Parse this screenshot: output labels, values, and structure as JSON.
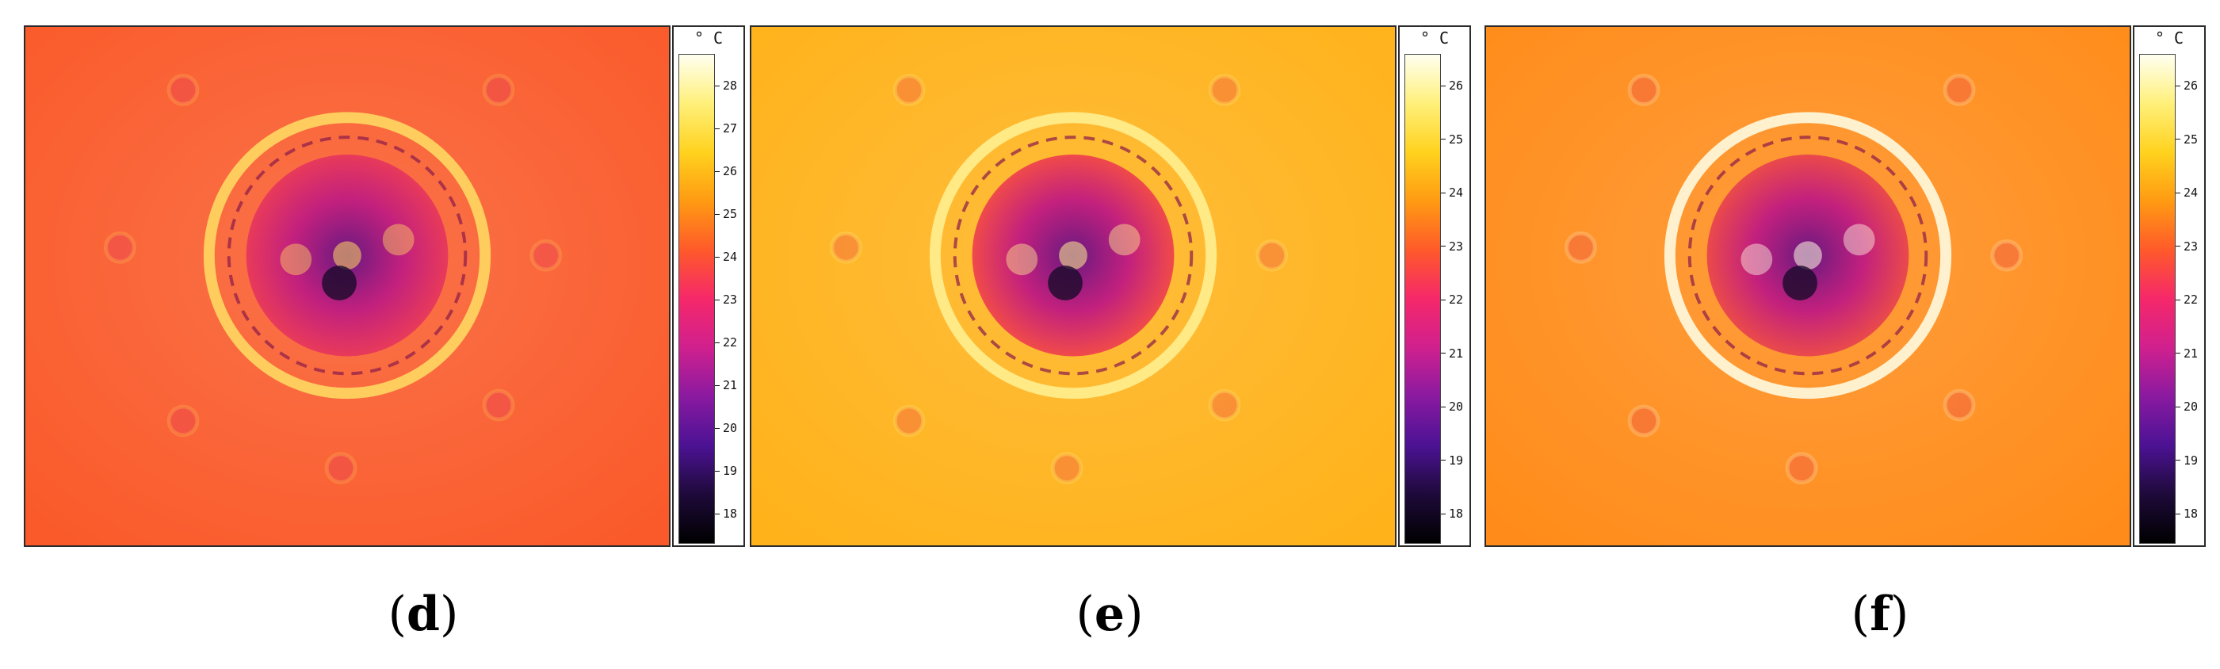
{
  "panels": [
    {
      "caption_letter": "d",
      "unit": "° C",
      "ticks": [
        "28",
        "27",
        "26",
        "25",
        "24",
        "23",
        "22",
        "21",
        "20",
        "19",
        "18"
      ],
      "palette": {
        "bg": "#fa5a2a",
        "ring": "#ffd860",
        "inner": "#e83a5a",
        "core": "#6a1a80"
      }
    },
    {
      "caption_letter": "e",
      "unit": "° C",
      "ticks": [
        "26",
        "25",
        "24",
        "23",
        "22",
        "21",
        "20",
        "19",
        "18"
      ],
      "palette": {
        "bg": "#ffb21a",
        "ring": "#fff090",
        "inner": "#f04a4a",
        "core": "#6a1a80"
      }
    },
    {
      "caption_letter": "f",
      "unit": "° C",
      "ticks": [
        "26",
        "25",
        "24",
        "23",
        "22",
        "21",
        "20",
        "19",
        "18"
      ],
      "palette": {
        "bg": "#ff8c1a",
        "ring": "#fffbe0",
        "inner": "#ea4a4a",
        "core": "#6a1a80"
      }
    }
  ],
  "colorbar": [
    "#fffff0",
    "#fff07a",
    "#ffd21e",
    "#ff9a12",
    "#ff5a2a",
    "#f5286a",
    "#d0208e",
    "#8a1aa0",
    "#4c1294",
    "#1e0a3a",
    "#000000"
  ]
}
